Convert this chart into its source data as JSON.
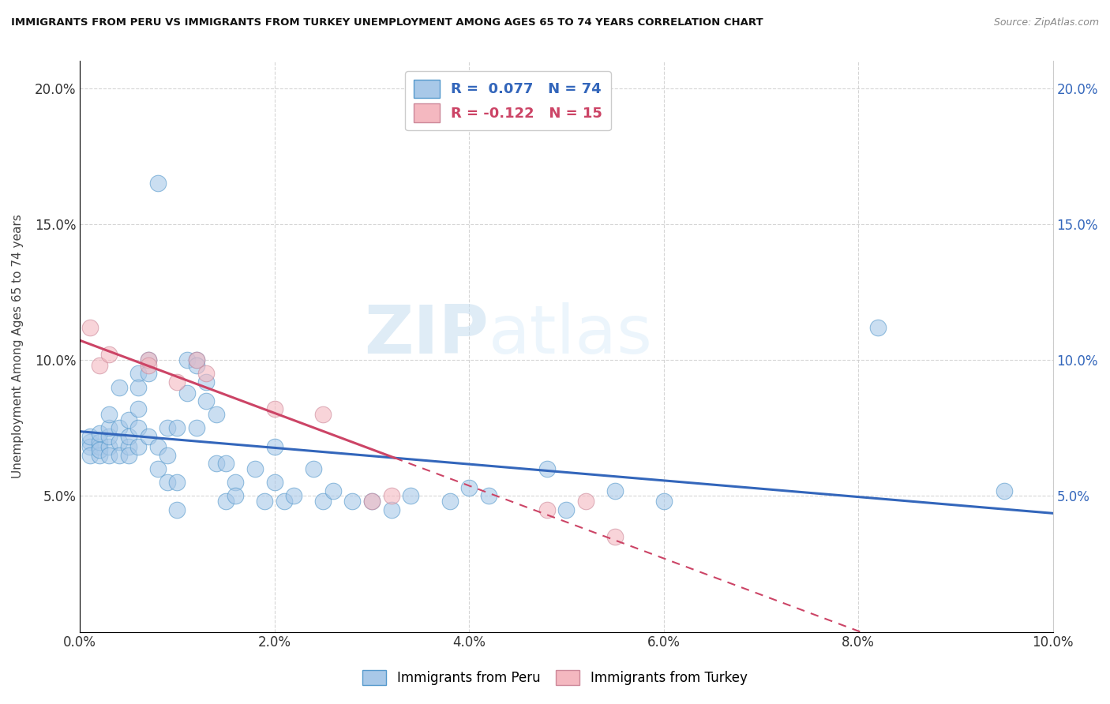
{
  "title": "IMMIGRANTS FROM PERU VS IMMIGRANTS FROM TURKEY UNEMPLOYMENT AMONG AGES 65 TO 74 YEARS CORRELATION CHART",
  "source": "Source: ZipAtlas.com",
  "ylabel": "Unemployment Among Ages 65 to 74 years",
  "xlim": [
    0.0,
    0.1
  ],
  "ylim": [
    0.0,
    0.21
  ],
  "xticks": [
    0.0,
    0.02,
    0.04,
    0.06,
    0.08,
    0.1
  ],
  "yticks": [
    0.0,
    0.05,
    0.1,
    0.15,
    0.2
  ],
  "xtick_labels": [
    "0.0%",
    "2.0%",
    "4.0%",
    "6.0%",
    "8.0%",
    "10.0%"
  ],
  "ytick_labels": [
    "",
    "5.0%",
    "10.0%",
    "15.0%",
    "20.0%"
  ],
  "peru_color": "#a8c8e8",
  "turkey_color": "#f4b8c0",
  "peru_edge_color": "#5599cc",
  "turkey_edge_color": "#cc8899",
  "peru_line_color": "#3366bb",
  "turkey_line_color": "#cc4466",
  "peru_R": 0.077,
  "peru_N": 74,
  "turkey_R": -0.122,
  "turkey_N": 15,
  "peru_scatter": [
    [
      0.001,
      0.07
    ],
    [
      0.001,
      0.068
    ],
    [
      0.001,
      0.072
    ],
    [
      0.001,
      0.065
    ],
    [
      0.002,
      0.068
    ],
    [
      0.002,
      0.065
    ],
    [
      0.002,
      0.07
    ],
    [
      0.002,
      0.073
    ],
    [
      0.002,
      0.067
    ],
    [
      0.003,
      0.068
    ],
    [
      0.003,
      0.065
    ],
    [
      0.003,
      0.072
    ],
    [
      0.003,
      0.075
    ],
    [
      0.003,
      0.08
    ],
    [
      0.004,
      0.07
    ],
    [
      0.004,
      0.075
    ],
    [
      0.004,
      0.065
    ],
    [
      0.004,
      0.09
    ],
    [
      0.005,
      0.068
    ],
    [
      0.005,
      0.072
    ],
    [
      0.005,
      0.078
    ],
    [
      0.005,
      0.065
    ],
    [
      0.006,
      0.095
    ],
    [
      0.006,
      0.09
    ],
    [
      0.006,
      0.082
    ],
    [
      0.006,
      0.075
    ],
    [
      0.006,
      0.068
    ],
    [
      0.007,
      0.1
    ],
    [
      0.007,
      0.095
    ],
    [
      0.007,
      0.072
    ],
    [
      0.008,
      0.165
    ],
    [
      0.008,
      0.068
    ],
    [
      0.008,
      0.06
    ],
    [
      0.009,
      0.075
    ],
    [
      0.009,
      0.065
    ],
    [
      0.009,
      0.055
    ],
    [
      0.01,
      0.055
    ],
    [
      0.01,
      0.045
    ],
    [
      0.01,
      0.075
    ],
    [
      0.011,
      0.1
    ],
    [
      0.011,
      0.088
    ],
    [
      0.012,
      0.1
    ],
    [
      0.012,
      0.098
    ],
    [
      0.012,
      0.075
    ],
    [
      0.013,
      0.092
    ],
    [
      0.013,
      0.085
    ],
    [
      0.014,
      0.08
    ],
    [
      0.014,
      0.062
    ],
    [
      0.015,
      0.048
    ],
    [
      0.015,
      0.062
    ],
    [
      0.016,
      0.055
    ],
    [
      0.016,
      0.05
    ],
    [
      0.018,
      0.06
    ],
    [
      0.019,
      0.048
    ],
    [
      0.02,
      0.068
    ],
    [
      0.02,
      0.055
    ],
    [
      0.021,
      0.048
    ],
    [
      0.022,
      0.05
    ],
    [
      0.024,
      0.06
    ],
    [
      0.025,
      0.048
    ],
    [
      0.026,
      0.052
    ],
    [
      0.028,
      0.048
    ],
    [
      0.03,
      0.048
    ],
    [
      0.032,
      0.045
    ],
    [
      0.034,
      0.05
    ],
    [
      0.038,
      0.048
    ],
    [
      0.04,
      0.053
    ],
    [
      0.042,
      0.05
    ],
    [
      0.048,
      0.06
    ],
    [
      0.05,
      0.045
    ],
    [
      0.055,
      0.052
    ],
    [
      0.06,
      0.048
    ],
    [
      0.082,
      0.112
    ],
    [
      0.095,
      0.052
    ]
  ],
  "turkey_scatter": [
    [
      0.001,
      0.112
    ],
    [
      0.002,
      0.098
    ],
    [
      0.003,
      0.102
    ],
    [
      0.007,
      0.1
    ],
    [
      0.007,
      0.098
    ],
    [
      0.01,
      0.092
    ],
    [
      0.012,
      0.1
    ],
    [
      0.013,
      0.095
    ],
    [
      0.02,
      0.082
    ],
    [
      0.025,
      0.08
    ],
    [
      0.03,
      0.048
    ],
    [
      0.032,
      0.05
    ],
    [
      0.048,
      0.045
    ],
    [
      0.052,
      0.048
    ],
    [
      0.055,
      0.035
    ]
  ],
  "watermark_zip": "ZIP",
  "watermark_atlas": "atlas",
  "background_color": "#ffffff",
  "grid_color": "#cccccc",
  "legend_box_color": "#dddddd"
}
